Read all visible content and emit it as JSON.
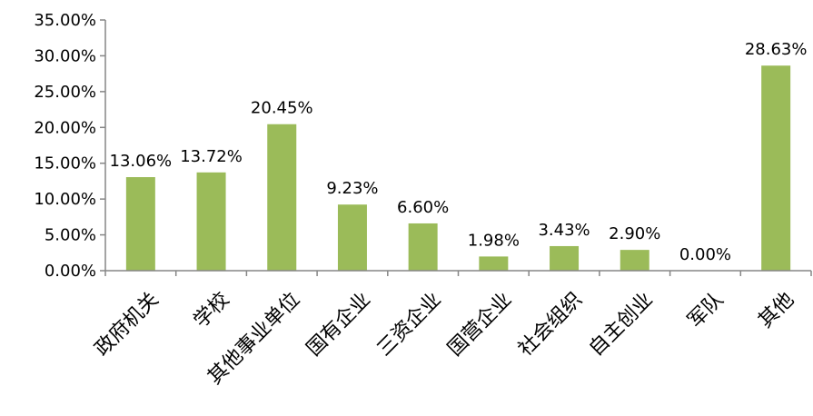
{
  "chart_data": {
    "type": "bar",
    "title": "",
    "xlabel": "",
    "ylabel": "",
    "categories": [
      "政府机关",
      "学校",
      "其他事业单位",
      "国有企业",
      "三资企业",
      "国营企业",
      "社会组织",
      "自主创业",
      "军队",
      "其他"
    ],
    "values": [
      13.06,
      13.72,
      20.45,
      9.23,
      6.6,
      1.98,
      3.43,
      2.9,
      0.0,
      28.63
    ],
    "value_labels": [
      "13.06%",
      "13.72%",
      "20.45%",
      "9.23%",
      "6.60%",
      "1.98%",
      "3.43%",
      "2.90%",
      "0.00%",
      "28.63%"
    ],
    "ylim": [
      0,
      35
    ],
    "yticks": [
      0,
      5,
      10,
      15,
      20,
      25,
      30,
      35
    ],
    "ytick_labels": [
      "0.00%",
      "5.00%",
      "10.00%",
      "15.00%",
      "20.00%",
      "25.00%",
      "30.00%",
      "35.00%"
    ],
    "grid": false,
    "legend": "none",
    "bar_color": "#9bbb59",
    "axis_color": "#868686"
  }
}
